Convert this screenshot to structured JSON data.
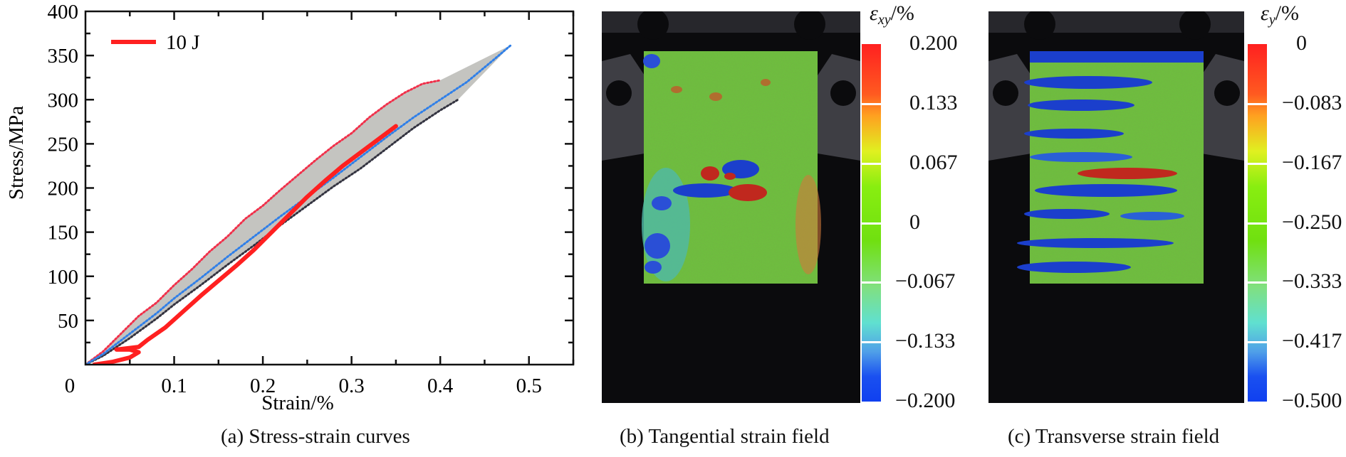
{
  "chart_data": [
    {
      "type": "line",
      "panel": "a",
      "caption": "(a) Stress-strain curves",
      "xlabel": "Strain/%",
      "ylabel": "Stress/MPa",
      "xlim": [
        0,
        0.55
      ],
      "ylim": [
        0,
        400
      ],
      "xticks": [
        "0.1",
        "0.2",
        "0.3",
        "0.4",
        "0.5"
      ],
      "yticks": [
        "50",
        "100",
        "150",
        "200",
        "250",
        "300",
        "350",
        "400"
      ],
      "origin_label": "0",
      "legend": {
        "position": "top-left",
        "entries": [
          "10 J"
        ]
      },
      "colors": {
        "main": "#ff2020",
        "upper": "#f0304a",
        "mid": "#2f7fe8",
        "lower": "#333340",
        "band": "#c4c4c0"
      },
      "series": [
        {
          "name": "10 J",
          "style": "solid",
          "x": [
            0.01,
            0.03,
            0.05,
            0.06,
            0.05,
            0.035,
            0.06,
            0.07,
            0.09,
            0.11,
            0.13,
            0.15,
            0.17,
            0.19,
            0.21,
            0.23,
            0.25,
            0.27,
            0.29,
            0.31,
            0.33,
            0.35
          ],
          "y": [
            0,
            3,
            8,
            14,
            17,
            17,
            20,
            28,
            42,
            60,
            78,
            95,
            112,
            130,
            150,
            170,
            190,
            208,
            225,
            240,
            255,
            270
          ]
        },
        {
          "name": "upper-bound",
          "style": "dotted",
          "x": [
            0,
            0.02,
            0.04,
            0.06,
            0.08,
            0.1,
            0.12,
            0.14,
            0.16,
            0.18,
            0.2,
            0.22,
            0.24,
            0.26,
            0.28,
            0.3,
            0.32,
            0.34,
            0.36,
            0.38,
            0.4
          ],
          "y": [
            0,
            15,
            35,
            55,
            70,
            90,
            108,
            128,
            145,
            165,
            180,
            198,
            215,
            232,
            248,
            262,
            280,
            295,
            308,
            318,
            322
          ]
        },
        {
          "name": "mean",
          "style": "dotted",
          "x": [
            0,
            0.02,
            0.05,
            0.08,
            0.1,
            0.13,
            0.16,
            0.19,
            0.22,
            0.25,
            0.28,
            0.31,
            0.34,
            0.37,
            0.4,
            0.43,
            0.46,
            0.48
          ],
          "y": [
            0,
            12,
            35,
            58,
            75,
            98,
            122,
            145,
            168,
            190,
            212,
            235,
            258,
            280,
            300,
            320,
            345,
            362
          ]
        },
        {
          "name": "lower-bound",
          "style": "dotted",
          "x": [
            0,
            0.02,
            0.05,
            0.08,
            0.1,
            0.13,
            0.16,
            0.19,
            0.22,
            0.25,
            0.28,
            0.31,
            0.34,
            0.37,
            0.4,
            0.42
          ],
          "y": [
            0,
            10,
            30,
            52,
            68,
            90,
            113,
            135,
            158,
            180,
            202,
            222,
            245,
            268,
            288,
            300
          ]
        }
      ]
    },
    {
      "type": "heatmap",
      "panel": "b",
      "caption": "(b) Tangential strain field",
      "colorbar_title": {
        "symbol": "ε",
        "subscript": "xy",
        "unit": "/%"
      },
      "colorbar_ticks": [
        "0.200",
        "0.133",
        "0.067",
        "0",
        "−0.067",
        "−0.133",
        "−0.200"
      ],
      "range": [
        -0.2,
        0.2
      ]
    },
    {
      "type": "heatmap",
      "panel": "c",
      "caption": "(c) Transverse strain field",
      "colorbar_title": {
        "symbol": "ε",
        "subscript": "y",
        "unit": "/%"
      },
      "colorbar_ticks": [
        "0",
        "−0.083",
        "−0.167",
        "−0.250",
        "−0.333",
        "−0.417",
        "−0.500"
      ],
      "range": [
        -0.5,
        0
      ]
    }
  ]
}
